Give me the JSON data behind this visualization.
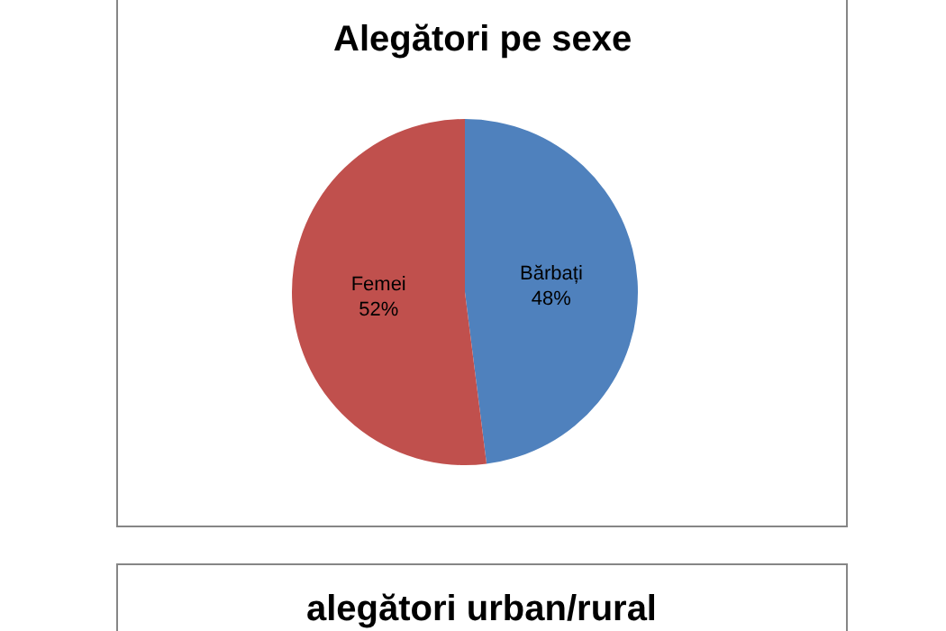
{
  "chart_data": [
    {
      "type": "pie",
      "title": "Alegători pe sexe",
      "categories": [
        "Bărbați",
        "Femei"
      ],
      "values": [
        48,
        52
      ],
      "colors": [
        "#4f81bd",
        "#c0504d"
      ],
      "value_labels": [
        "48%",
        "52%"
      ]
    },
    {
      "type": "other",
      "title": "alegători urban/rural"
    }
  ]
}
